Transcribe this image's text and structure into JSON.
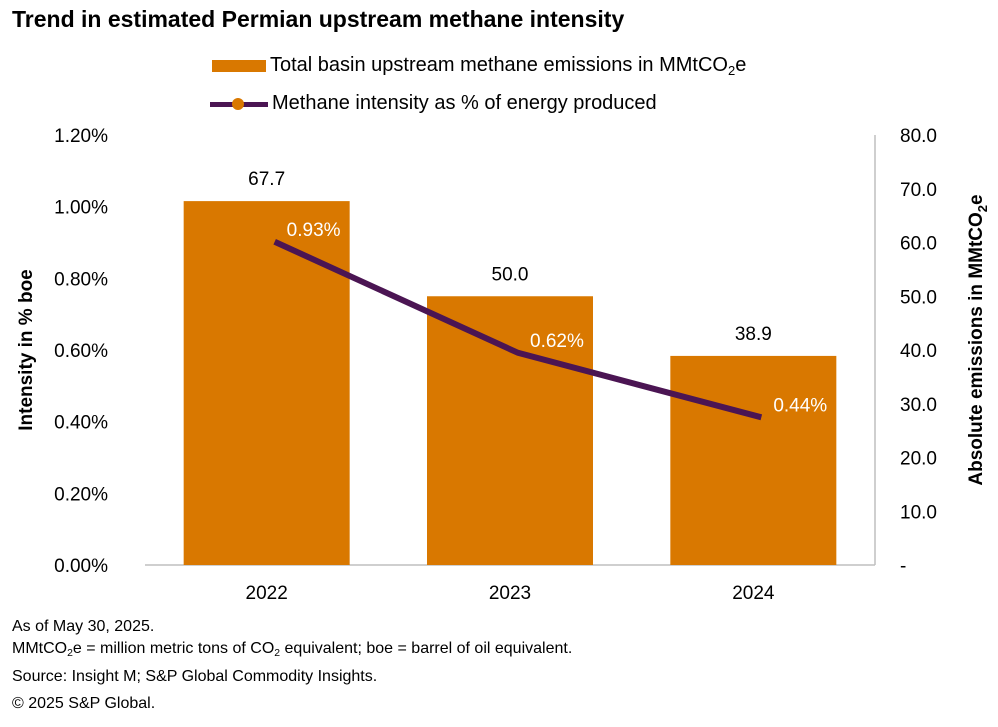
{
  "chart_data": {
    "type": "bar+line",
    "title": "Trend in estimated Permian upstream methane intensity",
    "categories": [
      "2022",
      "2023",
      "2024"
    ],
    "series": [
      {
        "name": "Total basin upstream methane emissions in MMtCO2e",
        "type": "bar",
        "axis": "right",
        "values": [
          67.7,
          50.0,
          38.9
        ],
        "labels": [
          "67.7",
          "50.0",
          "38.9"
        ],
        "color": "#D97800"
      },
      {
        "name": "Methane intensity as % of energy produced",
        "type": "line",
        "axis": "left",
        "values": [
          0.93,
          0.62,
          0.44
        ],
        "labels": [
          "0.93%",
          "0.62%",
          "0.44%"
        ],
        "color": "#4B1553"
      }
    ],
    "left_axis": {
      "label": "Intensity in % boe",
      "ylim": [
        0,
        1.2
      ],
      "ticks": [
        "0.00%",
        "0.20%",
        "0.40%",
        "0.60%",
        "0.80%",
        "1.00%",
        "1.20%"
      ]
    },
    "right_axis": {
      "label": "Absolute emissions in MMtCO2e",
      "ylim": [
        0,
        80
      ],
      "ticks": [
        "-",
        "10.0",
        "20.0",
        "30.0",
        "40.0",
        "50.0",
        "60.0",
        "70.0",
        "80.0"
      ]
    },
    "legend": {
      "position": "top-center"
    },
    "grid": false
  },
  "legend": {
    "bar_label": "Total basin upstream methane emissions in MMtCO",
    "bar_sub": "2",
    "bar_suffix": "e",
    "line_label": "Methane intensity as % of energy produced"
  },
  "footer": {
    "line1": "As of May 30, 2025.",
    "line2a": "MMtCO",
    "line2b": "e = million metric tons of CO",
    "line2c": " equivalent; boe = barrel of oil equivalent.",
    "sub": "2",
    "line3": "Source: Insight M; S&P Global Commodity Insights.",
    "line4": "© 2025 S&P Global."
  }
}
